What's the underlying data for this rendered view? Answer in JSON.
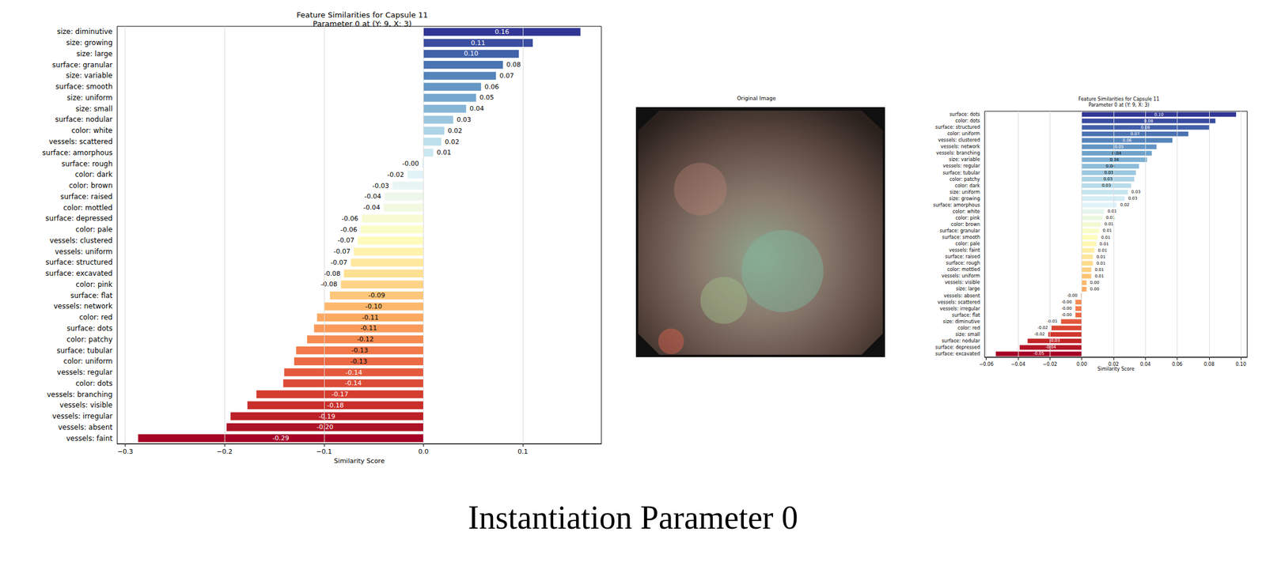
{
  "chart_data": [
    {
      "type": "bar",
      "orientation": "horizontal",
      "data_labels": true,
      "grid": true,
      "title": "Feature Similarities for Capsule 11",
      "subtitle": "Parameter 0 at (Y: 9, X: 3)",
      "xlabel": "Similarity Score",
      "categories": [
        "size: diminutive",
        "size: growing",
        "size: large",
        "surface: granular",
        "size: variable",
        "surface: smooth",
        "size: uniform",
        "size: small",
        "surface: nodular",
        "color: white",
        "vessels: scattered",
        "surface: amorphous",
        "surface: rough",
        "color: dark",
        "color: brown",
        "surface: raised",
        "color: mottled",
        "surface: depressed",
        "color: pale",
        "vessels: clustered",
        "vessels: uniform",
        "surface: structured",
        "surface: excavated",
        "color: pink",
        "surface: flat",
        "vessels: network",
        "color: red",
        "surface: dots",
        "color: patchy",
        "surface: tubular",
        "color: uniform",
        "vessels: regular",
        "color: dots",
        "vessels: branching",
        "vessels: visible",
        "vessels: irregular",
        "vessels: absent",
        "vessels: faint"
      ],
      "values": [
        0.158,
        0.11,
        0.096,
        0.08,
        0.073,
        0.058,
        0.053,
        0.043,
        0.03,
        0.021,
        0.018,
        0.01,
        -0.001,
        -0.016,
        -0.031,
        -0.039,
        -0.04,
        -0.062,
        -0.063,
        -0.066,
        -0.07,
        -0.073,
        -0.08,
        -0.083,
        -0.094,
        -0.1,
        -0.107,
        -0.11,
        -0.117,
        -0.128,
        -0.13,
        -0.14,
        -0.141,
        -0.168,
        -0.177,
        -0.194,
        -0.198,
        -0.287
      ],
      "value_labels": [
        "0.16",
        "0.11",
        "0.10",
        "0.08",
        "0.07",
        "0.06",
        "0.05",
        "0.04",
        "0.03",
        "0.02",
        "0.02",
        "0.01",
        "-0.00",
        "-0.02",
        "-0.03",
        "-0.04",
        "-0.04",
        "-0.06",
        "-0.06",
        "-0.07",
        "-0.07",
        "-0.07",
        "-0.08",
        "-0.08",
        "-0.09",
        "-0.10",
        "-0.11",
        "-0.11",
        "-0.12",
        "-0.13",
        "-0.13",
        "-0.14",
        "-0.14",
        "-0.17",
        "-0.18",
        "-0.19",
        "-0.20",
        "-0.29"
      ],
      "colors": [
        "#313695",
        "#3a4d9f",
        "#4060a8",
        "#4a74b2",
        "#5584bb",
        "#6497c4",
        "#74a7cd",
        "#86b5d6",
        "#9cc6df",
        "#aed4e7",
        "#bde0ec",
        "#cce8f0",
        "#d9eef3",
        "#e2f3f7",
        "#e8f5f3",
        "#eef7ea",
        "#f2f9e1",
        "#f6fbd4",
        "#fafdc8",
        "#fffbbb",
        "#fff2ac",
        "#fee89f",
        "#fee093",
        "#fed385",
        "#fdc579",
        "#fdb86d",
        "#fca962",
        "#f99a5a",
        "#f68b51",
        "#f27a4a",
        "#ec6a43",
        "#e55a3c",
        "#dc4b36",
        "#d43d30",
        "#c92e2a",
        "#bc2026",
        "#ad1326",
        "#a50026"
      ],
      "xlim": [
        -0.308,
        0.179
      ],
      "xticks": [
        {
          "value": -0.3,
          "label": "−0.3"
        },
        {
          "value": -0.2,
          "label": "−0.2"
        },
        {
          "value": -0.1,
          "label": "−0.1"
        },
        {
          "value": 0,
          "label": "0.0"
        },
        {
          "value": 0.1,
          "label": "0.1"
        }
      ]
    },
    {
      "type": "bar",
      "orientation": "horizontal",
      "data_labels": true,
      "grid": true,
      "title": "Feature Similarities for Capsule 11",
      "subtitle": "Parameter 0 at (Y: 9, X: 3)",
      "xlabel": "Similarity Score",
      "categories": [
        "surface: dots",
        "color: dots",
        "surface: structured",
        "color: uniform",
        "vessels: clustered",
        "vessels: network",
        "vessels: branching",
        "size: variable",
        "vessels: regular",
        "surface: tubular",
        "color: patchy",
        "color: dark",
        "size: uniform",
        "size: growing",
        "surface: amorphous",
        "color: white",
        "color: pink",
        "color: brown",
        "surface: granular",
        "surface: smooth",
        "color: pale",
        "vessels: faint",
        "surface: raised",
        "surface: rough",
        "color: mottled",
        "vessels: uniform",
        "vessels: visible",
        "size: large",
        "vessels: absent",
        "vessels: scattered",
        "vessels: irregular",
        "surface: flat",
        "size: diminutive",
        "color: red",
        "size: small",
        "surface: nodular",
        "surface: depressed",
        "surface: excavated"
      ],
      "values": [
        0.097,
        0.084,
        0.08,
        0.067,
        0.057,
        0.047,
        0.044,
        0.041,
        0.036,
        0.034,
        0.033,
        0.031,
        0.029,
        0.027,
        0.022,
        0.014,
        0.013,
        0.012,
        0.011,
        0.01,
        0.009,
        0.008,
        0.007,
        0.007,
        0.006,
        0.006,
        0.003,
        0.003,
        -0.0005,
        -0.004,
        -0.004,
        -0.004,
        -0.013,
        -0.019,
        -0.021,
        -0.034,
        -0.039,
        -0.054
      ],
      "value_labels": [
        "0.10",
        "0.08",
        "0.08",
        "0.07",
        "0.06",
        "0.05",
        "0.04",
        "0.04",
        "0.04",
        "0.03",
        "0.03",
        "0.03",
        "0.03",
        "0.03",
        "0.02",
        "0.01",
        "0.01",
        "0.01",
        "0.01",
        "0.01",
        "0.01",
        "0.01",
        "0.01",
        "0.01",
        "0.01",
        "0.01",
        "0.00",
        "0.00",
        "-0.00",
        "-0.00",
        "-0.00",
        "-0.00",
        "-0.01",
        "-0.02",
        "-0.02",
        "-0.03",
        "-0.04",
        "-0.05"
      ],
      "colors": [
        "#313695",
        "#3a4d9f",
        "#4260a9",
        "#4a72b1",
        "#5584bb",
        "#6295c3",
        "#6fa2ca",
        "#7eb0d2",
        "#8dbcd9",
        "#9cc7e0",
        "#abd3e6",
        "#b9dcea",
        "#c7e5ef",
        "#d4ecf3",
        "#e0f3f8",
        "#e6f5ec",
        "#ecf7e0",
        "#f2fad3",
        "#f8fcc7",
        "#fdfdbb",
        "#fff7b0",
        "#feeea4",
        "#fee699",
        "#fedc8d",
        "#fdd081",
        "#fdc475",
        "#fdb86b",
        "#fcaa62",
        "#f99b59",
        "#f68c51",
        "#f27b4a",
        "#eb6a43",
        "#e4593c",
        "#da4835",
        "#cf372d",
        "#c12427",
        "#b21526",
        "#a50026"
      ],
      "xlim": [
        -0.061,
        0.104
      ],
      "xticks": [
        {
          "value": -0.06,
          "label": "−0.06"
        },
        {
          "value": -0.04,
          "label": "−0.04"
        },
        {
          "value": -0.02,
          "label": "−0.02"
        },
        {
          "value": 0,
          "label": "0.00"
        },
        {
          "value": 0.02,
          "label": "0.02"
        },
        {
          "value": 0.04,
          "label": "0.04"
        },
        {
          "value": 0.06,
          "label": "0.06"
        },
        {
          "value": 0.08,
          "label": "0.08"
        },
        {
          "value": 0.1,
          "label": "0.10"
        }
      ]
    }
  ],
  "image_title": "Original Image",
  "caption": "Instantiation Parameter 0"
}
